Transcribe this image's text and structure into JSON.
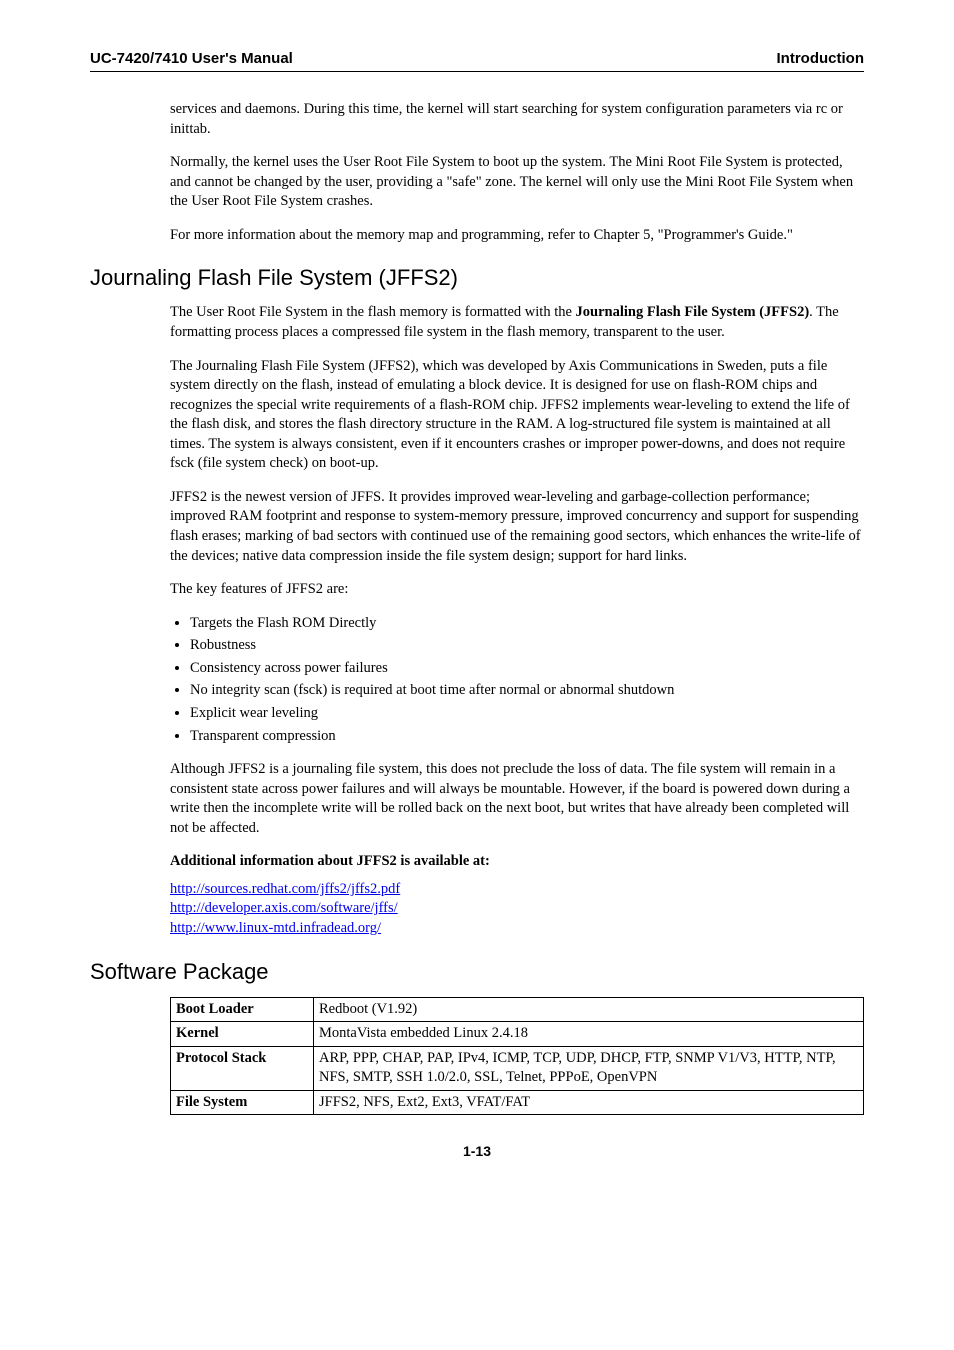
{
  "header": {
    "left": "UC-7420/7410 User's Manual",
    "right": "Introduction"
  },
  "intro": {
    "p1": "services and daemons. During this time, the kernel will start searching for system configuration parameters via rc or inittab.",
    "p2": "Normally, the kernel uses the User Root File System to boot up the system. The Mini Root File System is protected, and cannot be changed by the user, providing a \"safe\" zone. The kernel will only use the Mini Root File System when the User Root File System crashes.",
    "p3": "For more information about the memory map and programming, refer to Chapter 5, \"Programmer's Guide.\""
  },
  "jffs2": {
    "heading": "Journaling Flash File System (JFFS2)",
    "p1a": "The User Root File System in the flash memory is formatted with the ",
    "p1b": "Journaling Flash File System (JFFS2)",
    "p1c": ". The formatting process places a compressed file system in the flash memory, transparent to the user.",
    "p2": "The Journaling Flash File System (JFFS2), which was developed by Axis Communications in Sweden, puts a file system directly on the flash, instead of emulating a block device. It is designed for use on flash-ROM chips and recognizes the special write requirements of a flash-ROM chip. JFFS2 implements wear-leveling to extend the life of the flash disk, and stores the flash directory structure in the RAM. A log-structured file system is maintained at all times. The system is always consistent, even if it encounters crashes or improper power-downs, and does not require fsck (file system check) on boot-up.",
    "p3": "JFFS2 is the newest version of JFFS. It provides improved wear-leveling and garbage-collection performance; improved RAM footprint and response to system-memory pressure, improved concurrency and support for suspending flash erases; marking of bad sectors with continued use of the remaining good sectors, which enhances the write-life of the devices; native data compression inside the file system design; support for hard links.",
    "p4": "The key features of JFFS2 are:",
    "bullets": {
      "b1": "Targets the Flash ROM Directly",
      "b2": "Robustness",
      "b3": "Consistency across power failures",
      "b4": "No integrity scan (fsck) is required at boot time after normal or abnormal shutdown",
      "b5": "Explicit wear leveling",
      "b6": "Transparent compression"
    },
    "p5": "Although JFFS2 is a journaling file system, this does not preclude the loss of data. The file system will remain in a consistent state across power failures and will always be mountable. However, if the board is powered down during a write then the incomplete write will be rolled back on the next boot, but writes that have already been completed will not be affected.",
    "addl_heading": "Additional information about JFFS2 is available at:",
    "links": {
      "l1": "http://sources.redhat.com/jffs2/jffs2.pdf",
      "l2": "http://developer.axis.com/software/jffs/",
      "l3": "http://www.linux-mtd.infradead.org/"
    }
  },
  "software": {
    "heading": "Software Package",
    "table": {
      "r1": {
        "label": "Boot Loader",
        "value": "Redboot (V1.92)"
      },
      "r2": {
        "label": "Kernel",
        "value": "MontaVista embedded Linux 2.4.18"
      },
      "r3": {
        "label": "Protocol Stack",
        "value": "ARP, PPP, CHAP, PAP, IPv4, ICMP, TCP, UDP, DHCP, FTP, SNMP V1/V3, HTTP, NTP, NFS, SMTP, SSH 1.0/2.0, SSL, Telnet, PPPoE, OpenVPN"
      },
      "r4": {
        "label": "File System",
        "value": "JFFS2, NFS, Ext2, Ext3, VFAT/FAT"
      }
    }
  },
  "pagenum": "1-13"
}
